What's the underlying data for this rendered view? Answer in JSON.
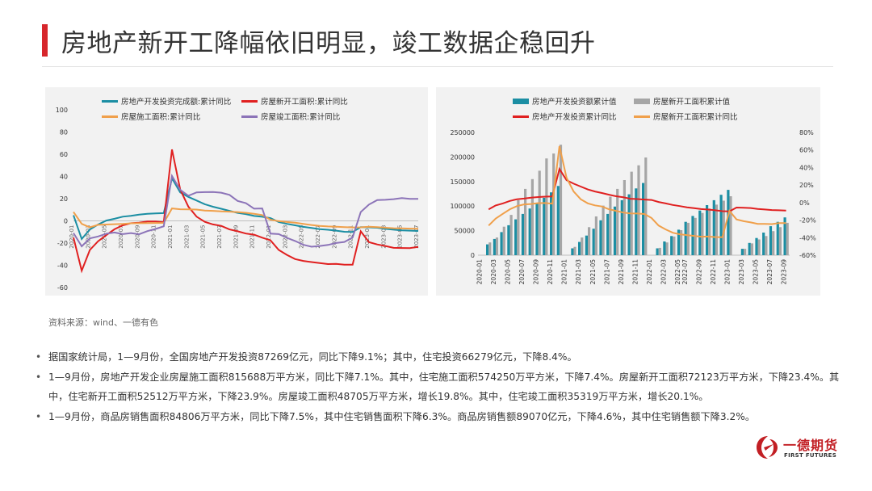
{
  "header": {
    "title": "房地产新开工降幅依旧明显，竣工数据企稳回升"
  },
  "colors": {
    "accent": "#d7262b",
    "teal": "#1b8ea3",
    "red": "#e02020",
    "orange": "#f0a04b",
    "purple": "#8c74b8",
    "gray": "#a6a6a6"
  },
  "source_note": "资料来源：wind、一德有色",
  "bullets": [
    "据国家统计局，1—9月份，全国房地产开发投资87269亿元，同比下降9.1%；其中，住宅投资66279亿元，下降8.4%。",
    "1—9月份，房地产开发企业房屋施工面积815688万平方米，同比下降7.1%。其中，住宅施工面积574250万平方米，下降7.4%。房屋新开工面积72123万平方米，下降23.4%。其中，住宅新开工面积52512万平方米，下降23.9%。房屋竣工面积48705万平方米，增长19.8%。其中，住宅竣工面积35319万平方米，增长20.1%。",
    "1—9月份，商品房销售面积84806万平方米，同比下降7.5%，其中住宅销售面积下降6.3%。商品房销售额89070亿元，下降4.6%，其中住宅销售额下降3.2%。"
  ],
  "logo": {
    "name_cn": "一德期货",
    "name_en": "FIRST FUTURES"
  },
  "chart_data": [
    {
      "type": "line",
      "title": "",
      "ylim": [
        -60,
        100
      ],
      "yticks": [
        100,
        80,
        60,
        40,
        20,
        0,
        -20,
        -40,
        -60
      ],
      "xticks": [
        "2020-01",
        "2020-03",
        "2020-05",
        "2020-07",
        "2020-09",
        "2020-11",
        "2021-01",
        "2021-03",
        "2021-05",
        "2021-07",
        "2021-09",
        "2021-11",
        "2022-01",
        "2022-03",
        "2022-05",
        "2022-07",
        "2022-09",
        "2022-11",
        "2023-01",
        "2023-03",
        "2023-05",
        "2023-07",
        "2023-09"
      ],
      "series": [
        {
          "name": "房地产开发投资完成额:累计同比",
          "color": "#1b8ea3",
          "values": [
            5.0,
            -16.3,
            -7.7,
            -3.3,
            0.3,
            1.9,
            3.8,
            4.6,
            5.6,
            6.3,
            6.8,
            7.0,
            38.3,
            25.6,
            21.6,
            18.3,
            15.0,
            12.7,
            10.9,
            9.0,
            7.2,
            6.1,
            4.4,
            3.7,
            2.5,
            -1.0,
            -2.7,
            -4.0,
            -5.4,
            -6.4,
            -7.4,
            -8.0,
            -8.8,
            -9.8,
            -10.0,
            -5.7,
            -5.8,
            -6.2,
            -7.2,
            -7.9,
            -8.5,
            -8.8,
            -9.1
          ]
        },
        {
          "name": "房屋新开工面积:累计同比",
          "color": "#e02020",
          "values": [
            -15.0,
            -44.9,
            -26.2,
            -18.3,
            -12.8,
            -7.6,
            -4.0,
            -2.1,
            -1.6,
            -0.6,
            -0.5,
            -1.2,
            64.3,
            28.2,
            12.8,
            3.8,
            -0.9,
            -3.2,
            -4.5,
            -7.7,
            -9.4,
            -11.4,
            -12.4,
            -15.1,
            -17.5,
            -26.2,
            -30.6,
            -34.4,
            -36.1,
            -37.1,
            -38.0,
            -38.9,
            -38.7,
            -39.4,
            -39.5,
            -9.4,
            -19.2,
            -21.2,
            -22.6,
            -24.3,
            -24.4,
            -24.5,
            -23.4
          ]
        },
        {
          "name": "房屋施工面积:累计同比",
          "color": "#f0a04b",
          "values": [
            8.0,
            -2.7,
            -5.8,
            -3.6,
            -3.3,
            -3.0,
            -2.7,
            -2.2,
            -2.1,
            -2.0,
            -1.9,
            -1.8,
            11.2,
            10.5,
            10.3,
            10.2,
            9.2,
            9.0,
            8.6,
            8.3,
            7.9,
            7.3,
            6.3,
            5.2,
            1.0,
            -0.2,
            -1.0,
            -1.7,
            -2.8,
            -3.7,
            -4.5,
            -5.0,
            -5.3,
            -5.6,
            -5.9,
            -5.8,
            -5.2,
            -5.6,
            -6.2,
            -6.6,
            -6.7,
            -7.0,
            -7.1
          ]
        },
        {
          "name": "房屋竣工面积:累计同比",
          "color": "#8c74b8",
          "values": [
            -11.0,
            -22.9,
            -15.8,
            -14.0,
            -11.6,
            -10.5,
            -11.9,
            -11.0,
            -12.1,
            -9.2,
            -7.3,
            -4.9,
            40.4,
            27.9,
            22.6,
            25.7,
            25.9,
            26.0,
            25.4,
            23.4,
            18.0,
            16.0,
            11.0,
            11.2,
            -11.5,
            -11.9,
            -15.3,
            -18.1,
            -21.5,
            -23.3,
            -22.6,
            -21.7,
            -19.9,
            -19.0,
            -15.0,
            8.0,
            14.7,
            18.8,
            19.0,
            19.6,
            20.5,
            19.8,
            19.8
          ]
        }
      ]
    },
    {
      "type": "bar",
      "title": "",
      "ylim": [
        0,
        250000
      ],
      "yticks": [
        250000,
        200000,
        150000,
        100000,
        50000,
        0
      ],
      "y2lim": [
        -60,
        80
      ],
      "y2ticks": [
        "80%",
        "60%",
        "40%",
        "20%",
        "0%",
        "-20%",
        "-40%",
        "-60%"
      ],
      "categories": [
        "2020-01",
        "2020-02",
        "2020-03",
        "2020-04",
        "2020-05",
        "2020-06",
        "2020-07",
        "2020-08",
        "2020-09",
        "2020-10",
        "2020-11",
        "2020-12",
        "2021-01",
        "2021-02",
        "2021-03",
        "2021-04",
        "2021-05",
        "2021-06",
        "2021-07",
        "2021-08",
        "2021-09",
        "2021-10",
        "2021-11",
        "2021-12",
        "2022-01",
        "2022-02",
        "2022-03",
        "2022-04",
        "2022-05",
        "2022-07",
        "2022-08",
        "2022-09",
        "2022-10",
        "2022-11",
        "2022-12",
        "2023-01",
        "2023-02",
        "2023-03",
        "2023-04",
        "2023-05",
        "2023-06",
        "2023-07",
        "2023-08",
        "2023-09"
      ],
      "xticks": [
        "2020-01",
        "2020-03",
        "2020-05",
        "2020-07",
        "2020-09",
        "2020-11",
        "2021-01",
        "2021-03",
        "2021-05",
        "2021-07",
        "2021-09",
        "2021-11",
        "2022-01",
        "2022-03",
        "2022-05",
        "2022-07",
        "2022-09",
        "2022-11",
        "2023-01",
        "2023-03",
        "2023-05",
        "2023-07",
        "2023-09"
      ],
      "series": [
        {
          "name": "房地产开发投资额累计值",
          "kind": "bar",
          "axis": "left",
          "color": "#1b8ea3",
          "values": [
            null,
            22000,
            33000,
            47000,
            61000,
            73000,
            84000,
            95000,
            105000,
            117000,
            128000,
            141000,
            null,
            14000,
            27000,
            40000,
            54000,
            71000,
            84000,
            99000,
            112000,
            124000,
            136000,
            147000,
            null,
            14000,
            28000,
            39000,
            52000,
            68000,
            80000,
            91000,
            102000,
            112000,
            123000,
            133000,
            null,
            13000,
            25000,
            35000,
            46000,
            59000,
            68000,
            77000
          ]
        },
        {
          "name": "房屋新开工面积累计值",
          "kind": "bar",
          "axis": "left",
          "color": "#a6a6a6",
          "values": [
            null,
            26000,
            36000,
            58000,
            82000,
            112000,
            135000,
            155000,
            172000,
            197000,
            207000,
            225000,
            null,
            17000,
            36000,
            57000,
            79000,
            101000,
            119000,
            135000,
            153000,
            170000,
            183000,
            199000,
            null,
            15000,
            26000,
            38000,
            51000,
            66000,
            76000,
            86000,
            95000,
            103000,
            111000,
            120000,
            null,
            13000,
            24000,
            32000,
            39000,
            49000,
            57000,
            66000
          ]
        },
        {
          "name": "房地产开发投资累计同比",
          "kind": "line",
          "axis": "right",
          "color": "#e02020",
          "values": [
            null,
            -7.7,
            -3.3,
            -1.0,
            1.9,
            3.8,
            4.6,
            5.6,
            6.3,
            6.8,
            7.0,
            38.3,
            25.6,
            21.6,
            18.3,
            15.0,
            12.7,
            10.9,
            9.0,
            7.2,
            6.1,
            4.4,
            4.0,
            3.5,
            3.0,
            0.7,
            -1.0,
            -2.7,
            -4.0,
            -5.4,
            -6.4,
            -7.4,
            -8.0,
            -8.8,
            -9.8,
            -10.0,
            -5.7,
            -5.8,
            -6.2,
            -7.2,
            -7.9,
            -8.5,
            -8.8,
            -9.1
          ]
        },
        {
          "name": "房屋新开工面积累计同比",
          "kind": "line",
          "axis": "right",
          "color": "#f0a04b",
          "values": [
            null,
            -26.2,
            -18.3,
            -12.8,
            -7.6,
            -4.0,
            -2.1,
            -1.6,
            -0.6,
            -0.5,
            -1.2,
            64.3,
            28.2,
            12.8,
            3.8,
            -0.9,
            -3.2,
            -4.5,
            -7.7,
            -9.4,
            -11.4,
            -12.4,
            -12.5,
            -13.0,
            -17.5,
            -26.2,
            -30.6,
            -34.4,
            -36.1,
            -37.1,
            -38.0,
            -38.9,
            -38.7,
            -39.4,
            -39.5,
            -9.4,
            -19.2,
            -21.2,
            -22.6,
            -24.3,
            -24.4,
            -24.5,
            -23.4,
            -23.4
          ]
        }
      ]
    }
  ]
}
